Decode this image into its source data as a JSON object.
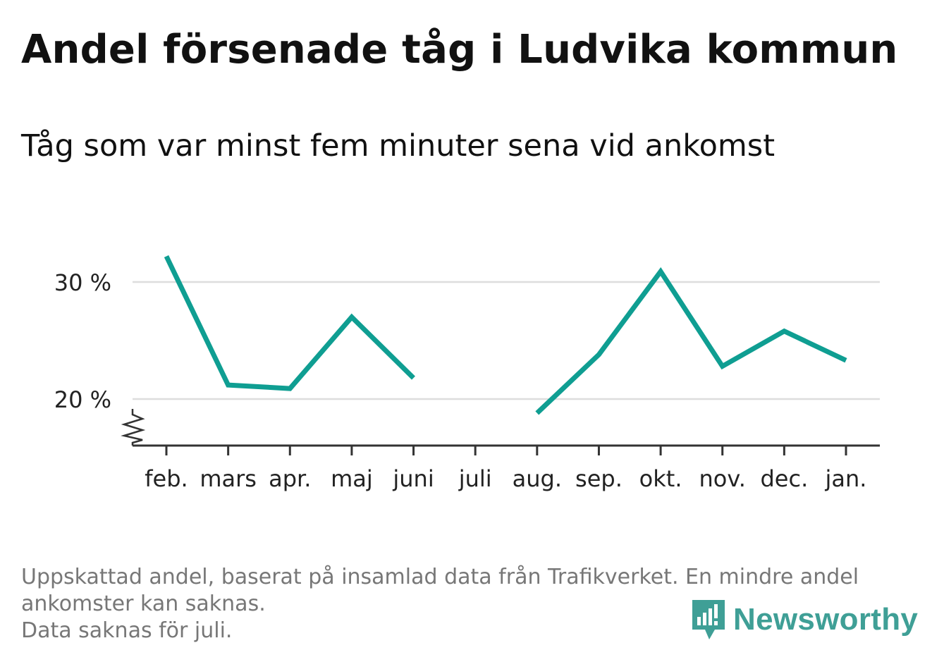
{
  "title": "Andel försenade tåg i Ludvika kommun",
  "subtitle": "Tåg som var minst fem minuter sena vid ankomst",
  "chart_data": {
    "type": "line",
    "categories": [
      "feb.",
      "mars",
      "apr.",
      "maj",
      "juni",
      "juli",
      "aug.",
      "sep.",
      "okt.",
      "nov.",
      "dec.",
      "jan."
    ],
    "series": [
      {
        "values": [
          32.2,
          21.2,
          20.9,
          27.0,
          21.8,
          null,
          18.8,
          23.8,
          30.9,
          22.8,
          25.8,
          23.3
        ]
      }
    ],
    "yticks": [
      20,
      30
    ],
    "ytick_labels": [
      "20 %",
      "30 %"
    ],
    "ylim": [
      16,
      34
    ],
    "y_axis_break": true,
    "grid": true,
    "line_color": "#0f9e92"
  },
  "footnote": {
    "line1": "Uppskattad andel, baserat på insamlad data från Trafikverket. En mindre andel",
    "line2": "ankomster kan saknas.",
    "line3": "Data saknas för juli."
  },
  "logo": {
    "text": "Newsworthy",
    "icon": "newsworthy-chart-icon",
    "color": "#3f9f96"
  }
}
